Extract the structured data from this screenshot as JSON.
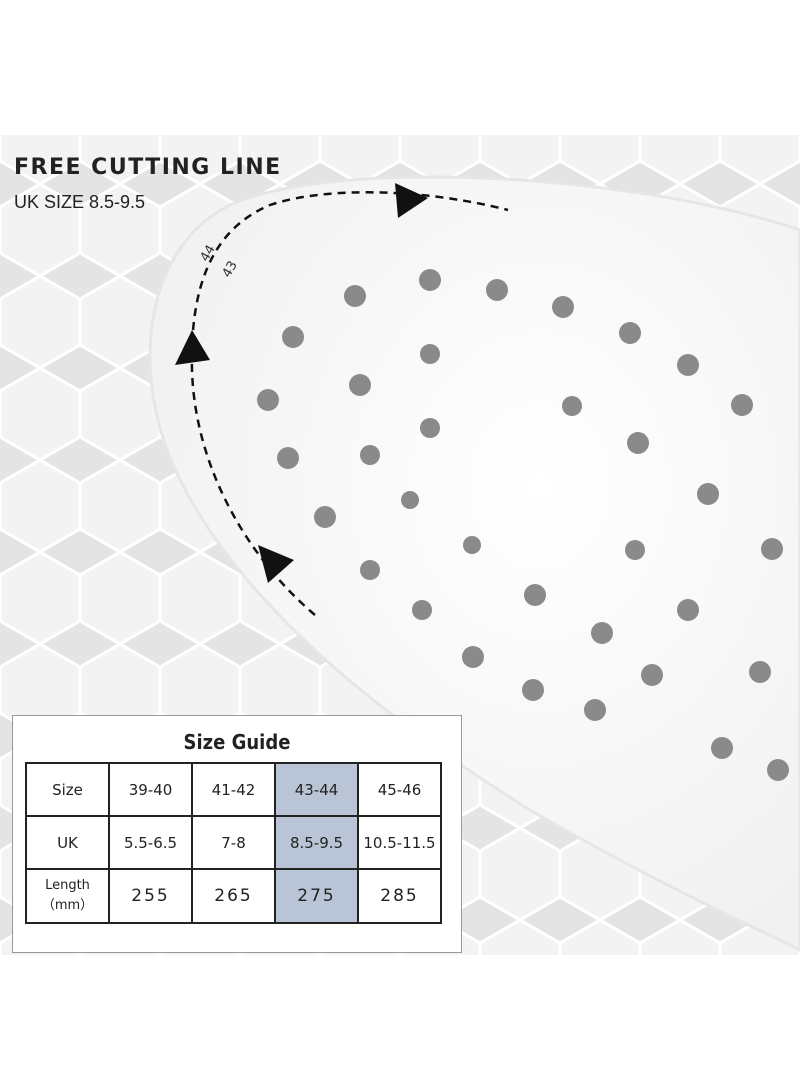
{
  "header": {
    "title": "FREE CUTTING LINE",
    "subtitle": "UK SIZE 8.5-9.5"
  },
  "cutting_labels": [
    "44",
    "43"
  ],
  "table": {
    "title": "Size Guide",
    "rows": [
      [
        "Size",
        "39-40",
        "41-42",
        "43-44",
        "45-46"
      ],
      [
        "UK",
        "5.5-6.5",
        "7-8",
        "8.5-9.5",
        "10.5-11.5"
      ],
      [
        [
          "Length",
          "（mm）"
        ],
        "255",
        "265",
        "275",
        "285"
      ]
    ]
  }
}
